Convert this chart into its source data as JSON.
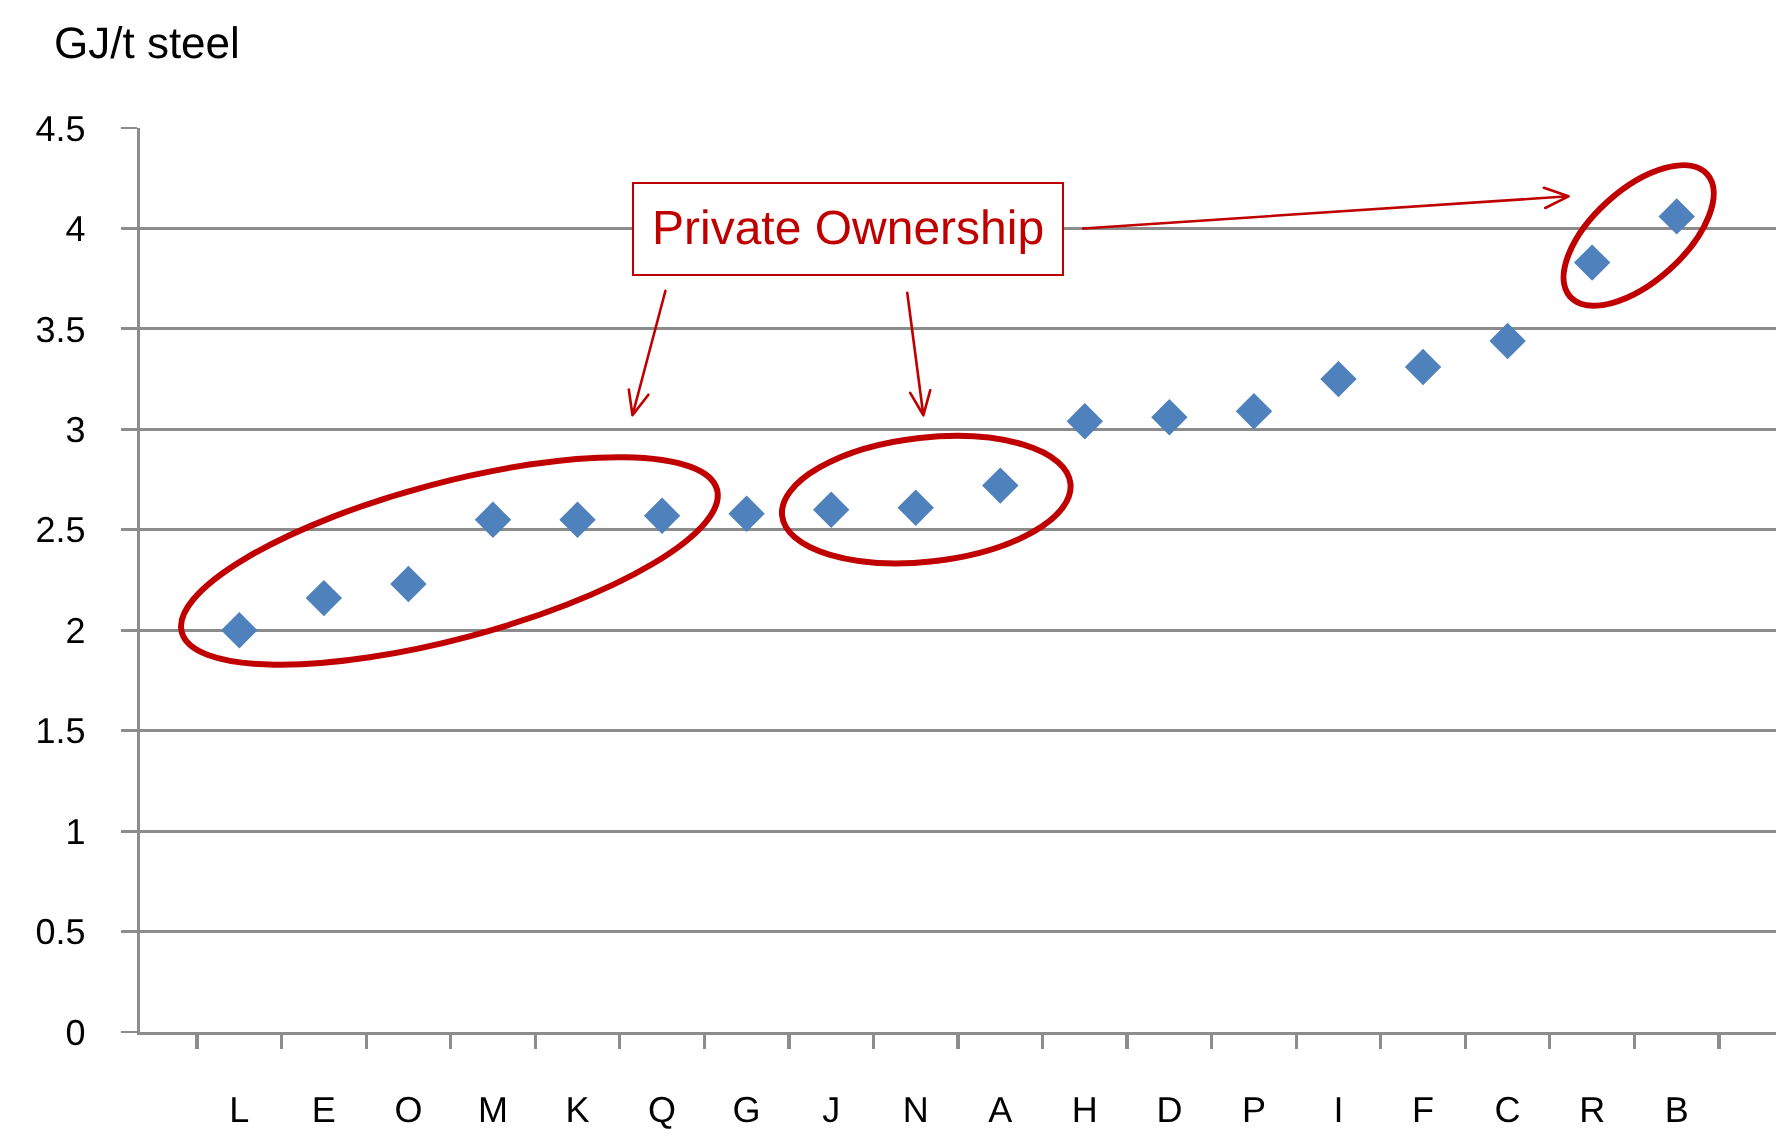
{
  "chart_data": {
    "type": "scatter",
    "ylabel": "GJ/t steel",
    "annotations": [
      "Private Ownership"
    ],
    "categories": [
      "L",
      "E",
      "O",
      "M",
      "K",
      "Q",
      "G",
      "J",
      "N",
      "A",
      "H",
      "D",
      "P",
      "I",
      "F",
      "C",
      "R",
      "B"
    ],
    "values": [
      2.0,
      2.16,
      2.23,
      2.55,
      2.55,
      2.57,
      2.58,
      2.6,
      2.61,
      2.72,
      3.04,
      3.06,
      3.09,
      3.25,
      3.31,
      3.44,
      3.83,
      4.06
    ],
    "color": "#4f81bd",
    "marker": "diamond",
    "ylim": [
      0,
      4.5
    ],
    "yticks": [
      0,
      0.5,
      1,
      1.5,
      2,
      2.5,
      3,
      3.5,
      4,
      4.5
    ],
    "grid": "y"
  }
}
